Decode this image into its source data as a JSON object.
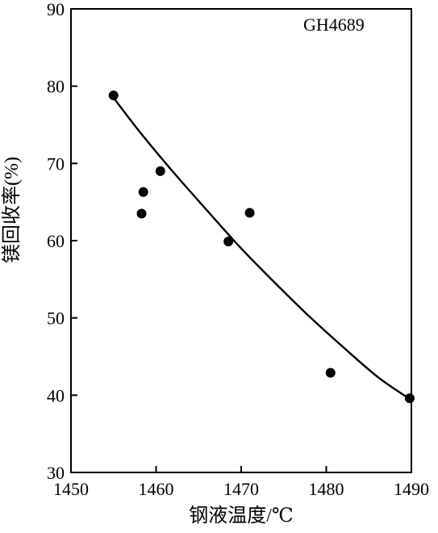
{
  "chart_data": {
    "type": "scatter",
    "annotation": "GH4689",
    "xlabel": "钢液温度/℃",
    "ylabel": "镁回收率(%)",
    "xlim": [
      1450,
      1490
    ],
    "ylim": [
      30,
      90
    ],
    "xticks": [
      1450,
      1460,
      1470,
      1480,
      1490
    ],
    "yticks": [
      30,
      40,
      50,
      60,
      70,
      80,
      90
    ],
    "grid": false,
    "points": [
      {
        "x": 1455.0,
        "y": 78.8
      },
      {
        "x": 1458.5,
        "y": 66.3
      },
      {
        "x": 1458.3,
        "y": 63.5
      },
      {
        "x": 1460.5,
        "y": 69.0
      },
      {
        "x": 1468.5,
        "y": 59.9
      },
      {
        "x": 1471.0,
        "y": 63.6
      },
      {
        "x": 1480.5,
        "y": 42.9
      },
      {
        "x": 1489.8,
        "y": 39.6
      }
    ],
    "fit_curve": [
      {
        "x": 1455.0,
        "y": 78.5
      },
      {
        "x": 1458.0,
        "y": 74.2
      },
      {
        "x": 1462.0,
        "y": 68.9
      },
      {
        "x": 1466.0,
        "y": 63.9
      },
      {
        "x": 1470.0,
        "y": 59.0
      },
      {
        "x": 1474.0,
        "y": 54.5
      },
      {
        "x": 1478.0,
        "y": 50.2
      },
      {
        "x": 1482.0,
        "y": 46.2
      },
      {
        "x": 1486.0,
        "y": 42.4
      },
      {
        "x": 1489.8,
        "y": 39.5
      }
    ]
  }
}
